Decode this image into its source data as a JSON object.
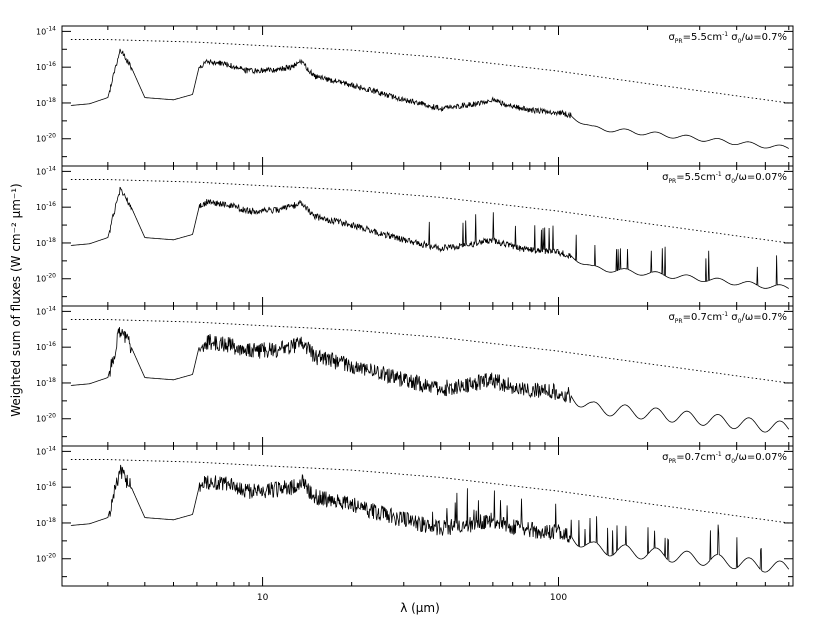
{
  "figure": {
    "ylabel": "Weighted sum of fluxes (W cm⁻² μm⁻¹)",
    "xlabel": "λ (μm)"
  },
  "chart_data": {
    "type": "line",
    "x_scale": "log",
    "y_scale": "log",
    "xlim": [
      2.1,
      620
    ],
    "ylim": [
      3e-22,
      2e-14
    ],
    "x_ticks": [
      10,
      100
    ],
    "x_tick_labels": [
      "10",
      "100"
    ],
    "y_ticks": [
      1e-14,
      1e-16,
      1e-18,
      1e-20
    ],
    "y_tick_labels": [
      {
        "m": "10",
        "e": "-14"
      },
      {
        "m": "10",
        "e": "-16"
      },
      {
        "m": "10",
        "e": "-18"
      },
      {
        "m": "10",
        "e": "-20"
      }
    ],
    "panels": [
      {
        "label": {
          "sym": "σ",
          "sub1": "PR",
          "part1": "=5.5cm",
          "sup": "-1",
          "sym2": "σ",
          "sub2": "0",
          "part2": "/ω=0.7%"
        },
        "noise": 0.35,
        "lines": 0.0
      },
      {
        "label": {
          "sym": "σ",
          "sub1": "PR",
          "part1": "=5.5cm",
          "sup": "-1",
          "sym2": "σ",
          "sub2": "0",
          "part2": "/ω=0.07%"
        },
        "noise": 0.4,
        "lines": 1.0
      },
      {
        "label": {
          "sym": "σ",
          "sub1": "PR",
          "part1": "=0.7cm",
          "sup": "-1",
          "sym2": "σ",
          "sub2": "0",
          "part2": "/ω=0.7%"
        },
        "noise": 1.0,
        "lines": 0.0
      },
      {
        "label": {
          "sym": "σ",
          "sub1": "PR",
          "part1": "=0.7cm",
          "sup": "-1",
          "sym2": "σ",
          "sub2": "0",
          "part2": "/ω=0.07%"
        },
        "noise": 1.0,
        "lines": 1.0
      }
    ],
    "upper_envelope": {
      "x": [
        2.2,
        3.0,
        6.0,
        10,
        20,
        40,
        100,
        200,
        400,
        600
      ],
      "y": [
        3.5e-15,
        3.5e-15,
        2.5e-15,
        1.6e-15,
        9e-16,
        3.5e-16,
        6e-17,
        1.2e-17,
        2.5e-18,
        1e-18
      ]
    },
    "continuum": {
      "x": [
        2.2,
        2.6,
        3.0,
        3.3,
        3.6,
        4.0,
        5.0,
        5.8,
        6.1,
        6.5,
        7.5,
        9,
        11,
        12.5,
        13.5,
        15,
        20,
        30,
        40,
        50,
        60,
        70,
        80,
        100,
        110,
        130,
        200,
        300,
        400,
        500,
        600
      ],
      "y": [
        7e-19,
        9e-19,
        2e-18,
        1e-15,
        1e-16,
        2e-18,
        1.5e-18,
        3e-18,
        1e-16,
        2e-16,
        1.5e-16,
        6e-17,
        7e-17,
        1e-16,
        2e-16,
        3e-17,
        1e-17,
        1.5e-18,
        5e-19,
        8e-19,
        1.5e-18,
        6e-19,
        4e-19,
        3e-19,
        2e-19,
        4e-20,
        2e-20,
        1e-20,
        6e-21,
        4e-21,
        3e-21
      ]
    }
  }
}
